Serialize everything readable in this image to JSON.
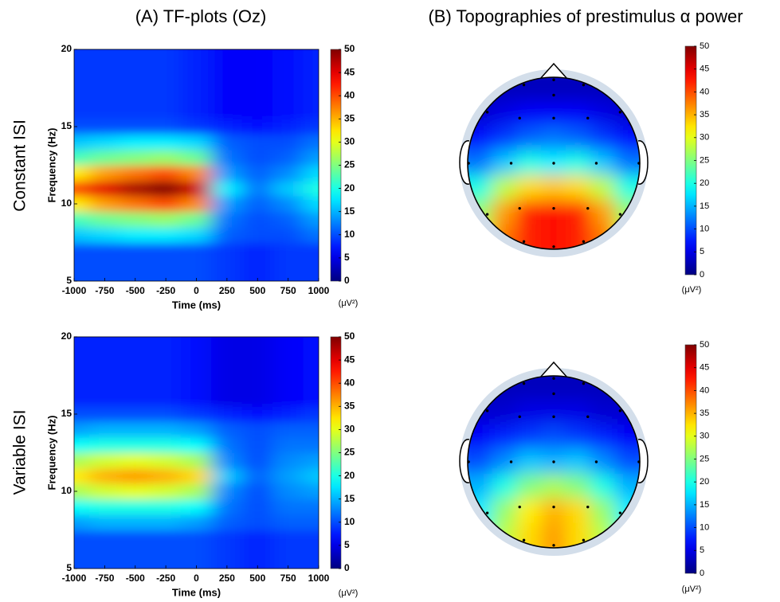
{
  "figure_titles": [
    "(A)  TF-plots (Oz)",
    "(B)  Topographies of prestimulus α power"
  ],
  "row_labels": [
    "Constant ISI",
    "Variable ISI"
  ],
  "chart_data": [
    {
      "type": "heatmap",
      "colormap": "jet",
      "x": [
        -1000,
        -750,
        -500,
        -250,
        0,
        250,
        500,
        750,
        1000
      ],
      "y": [
        5,
        6,
        7,
        8,
        9,
        10,
        11,
        12,
        13,
        14,
        15,
        16,
        17,
        18,
        19,
        20
      ],
      "z": [
        [
          10,
          10,
          10,
          10,
          10,
          9,
          8,
          9,
          9
        ],
        [
          10,
          10,
          10,
          10,
          10,
          9,
          8,
          9,
          9
        ],
        [
          10,
          10,
          10,
          10,
          10,
          9,
          8,
          9,
          9
        ],
        [
          16,
          17,
          18,
          18,
          17,
          11,
          10,
          10,
          12
        ],
        [
          22,
          24,
          25,
          26,
          24,
          12,
          10,
          11,
          14
        ],
        [
          32,
          36,
          38,
          40,
          37,
          14,
          11,
          13,
          17
        ],
        [
          40,
          45,
          48,
          50,
          46,
          18,
          12,
          16,
          20
        ],
        [
          32,
          36,
          38,
          40,
          37,
          14,
          11,
          13,
          17
        ],
        [
          22,
          24,
          25,
          26,
          24,
          12,
          10,
          11,
          14
        ],
        [
          16,
          17,
          18,
          18,
          17,
          11,
          10,
          10,
          12
        ],
        [
          10,
          10,
          10,
          10,
          9,
          8,
          7,
          8,
          9
        ],
        [
          9,
          9,
          9,
          9,
          8,
          6,
          6,
          7,
          8
        ],
        [
          9,
          9,
          9,
          9,
          8,
          6,
          6,
          7,
          8
        ],
        [
          9,
          9,
          9,
          9,
          8,
          6,
          6,
          7,
          8
        ],
        [
          9,
          9,
          9,
          9,
          8,
          6,
          6,
          7,
          8
        ],
        [
          9,
          9,
          9,
          9,
          8,
          6,
          6,
          7,
          8
        ]
      ],
      "xlim": [
        -1000,
        1000
      ],
      "ylim": [
        5,
        20
      ],
      "xticks": [
        -1000,
        -750,
        -500,
        -250,
        0,
        250,
        500,
        750,
        1000
      ],
      "yticks": [
        5,
        10,
        15,
        20
      ],
      "xlabel": "Time (ms)",
      "ylabel": "Frequency (Hz)",
      "clim": [
        0,
        50
      ],
      "cticks": [
        0,
        5,
        10,
        15,
        20,
        25,
        30,
        35,
        40,
        45,
        50
      ],
      "clabel": "(μV²)"
    },
    {
      "type": "topomap",
      "colormap": "jet",
      "z": [
        [
          3,
          3,
          3,
          3,
          3,
          3,
          3
        ],
        [
          4,
          5,
          6,
          6,
          6,
          5,
          4
        ],
        [
          7,
          9,
          11,
          12,
          11,
          9,
          7
        ],
        [
          12,
          16,
          20,
          18,
          20,
          16,
          12
        ],
        [
          20,
          28,
          33,
          34,
          33,
          28,
          20
        ],
        [
          26,
          36,
          42,
          43,
          42,
          36,
          26
        ],
        [
          30,
          38,
          42,
          43,
          42,
          38,
          30
        ]
      ],
      "clim": [
        0,
        50
      ],
      "cticks": [
        0,
        5,
        10,
        15,
        20,
        25,
        30,
        35,
        40,
        45,
        50
      ],
      "clabel": "(μV²)"
    },
    {
      "type": "heatmap",
      "colormap": "jet",
      "x": [
        -1000,
        -750,
        -500,
        -250,
        0,
        250,
        500,
        750,
        1000
      ],
      "y": [
        5,
        6,
        7,
        8,
        9,
        10,
        11,
        12,
        13,
        14,
        15,
        16,
        17,
        18,
        19,
        20
      ],
      "z": [
        [
          10,
          10,
          10,
          10,
          10,
          9,
          8,
          9,
          9
        ],
        [
          10,
          10,
          10,
          10,
          10,
          9,
          8,
          9,
          9
        ],
        [
          10,
          10,
          10,
          10,
          10,
          9,
          8,
          9,
          9
        ],
        [
          14,
          15,
          15,
          15,
          14,
          11,
          10,
          11,
          11
        ],
        [
          19,
          20,
          20,
          20,
          19,
          12,
          10,
          12,
          12
        ],
        [
          27,
          29,
          30,
          29,
          27,
          13,
          10,
          13,
          14
        ],
        [
          32,
          35,
          36,
          35,
          33,
          16,
          11,
          14,
          16
        ],
        [
          27,
          29,
          30,
          29,
          27,
          13,
          10,
          13,
          14
        ],
        [
          19,
          20,
          20,
          20,
          19,
          12,
          10,
          12,
          12
        ],
        [
          14,
          15,
          15,
          15,
          14,
          11,
          10,
          11,
          11
        ],
        [
          10,
          10,
          10,
          10,
          9,
          8,
          7,
          8,
          9
        ],
        [
          8,
          8,
          8,
          8,
          7,
          5,
          5,
          6,
          7
        ],
        [
          8,
          8,
          8,
          8,
          7,
          5,
          5,
          6,
          7
        ],
        [
          8,
          8,
          8,
          8,
          7,
          5,
          5,
          6,
          7
        ],
        [
          8,
          8,
          8,
          8,
          7,
          5,
          5,
          6,
          7
        ],
        [
          8,
          8,
          8,
          8,
          7,
          5,
          5,
          6,
          7
        ]
      ],
      "xlim": [
        -1000,
        1000
      ],
      "ylim": [
        5,
        20
      ],
      "xticks": [
        -1000,
        -750,
        -500,
        -250,
        0,
        250,
        500,
        750,
        1000
      ],
      "yticks": [
        5,
        10,
        15,
        20
      ],
      "xlabel": "Time (ms)",
      "ylabel": "Frequency (Hz)",
      "clim": [
        0,
        50
      ],
      "cticks": [
        0,
        5,
        10,
        15,
        20,
        25,
        30,
        35,
        40,
        45,
        50
      ],
      "clabel": "(μV²)"
    },
    {
      "type": "topomap",
      "colormap": "jet",
      "z": [
        [
          3,
          3,
          3,
          3,
          3,
          3,
          3
        ],
        [
          4,
          4,
          5,
          5,
          5,
          4,
          4
        ],
        [
          6,
          8,
          9,
          10,
          9,
          8,
          6
        ],
        [
          10,
          13,
          16,
          15,
          16,
          13,
          10
        ],
        [
          15,
          20,
          25,
          27,
          25,
          20,
          15
        ],
        [
          18,
          26,
          32,
          35,
          33,
          26,
          18
        ],
        [
          20,
          28,
          33,
          36,
          33,
          28,
          20
        ]
      ],
      "clim": [
        0,
        50
      ],
      "cticks": [
        0,
        5,
        10,
        15,
        20,
        25,
        30,
        35,
        40,
        45,
        50
      ],
      "clabel": "(μV²)"
    }
  ]
}
